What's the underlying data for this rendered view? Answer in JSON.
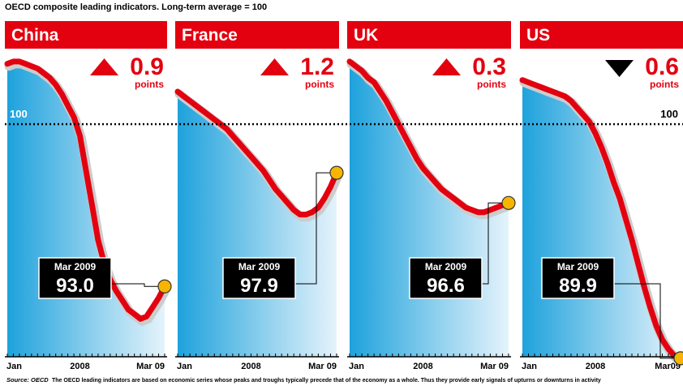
{
  "title": "OECD composite leading indicators. Long-term average = 100",
  "reference": 100,
  "source": "Source: OECD",
  "note": "The OECD leading indicators are based on economic series whose peaks and troughs typically precede that of the economy as a whole. Thus they provide early signals of upturns or downturns in activity",
  "chart_data": [
    {
      "type": "line",
      "title": "China",
      "color": "#e3000f",
      "ylim": [
        90,
        103.5
      ],
      "categories": [
        "Jan",
        null,
        null,
        null,
        null,
        null,
        null,
        null,
        null,
        null,
        null,
        null,
        "2008",
        null,
        null,
        null,
        null,
        null,
        null,
        null,
        null,
        null,
        null,
        null,
        null,
        null,
        "Mar 09"
      ],
      "values": [
        102.6,
        102.7,
        102.7,
        102.6,
        102.5,
        102.4,
        102.2,
        102.0,
        101.7,
        101.3,
        100.8,
        100.3,
        99.5,
        98.0,
        96.5,
        95.0,
        94.0,
        93.3,
        92.8,
        92.4,
        92.0,
        91.8,
        91.6,
        91.7,
        92.1,
        92.5,
        93.0
      ],
      "value_labels": [
        null,
        null,
        null,
        null,
        null,
        null,
        null,
        null,
        null,
        null,
        null,
        null,
        null,
        null,
        null,
        null,
        null,
        null,
        null,
        null,
        null,
        null,
        null,
        null,
        null,
        null,
        "93.0"
      ],
      "annotation": "Mar 2009",
      "change": 0.9,
      "change_unit": "points",
      "change_direction": "up"
    },
    {
      "type": "line",
      "title": "France",
      "color": "#e3000f",
      "ylim": [
        90,
        103.5
      ],
      "categories": [
        "Jan",
        null,
        null,
        null,
        null,
        null,
        null,
        null,
        null,
        null,
        null,
        null,
        "2008",
        null,
        null,
        null,
        null,
        null,
        null,
        null,
        null,
        null,
        null,
        null,
        null,
        null,
        "Mar 09"
      ],
      "values": [
        101.4,
        101.2,
        101.0,
        100.8,
        100.6,
        100.4,
        100.2,
        100.0,
        99.8,
        99.5,
        99.2,
        98.9,
        98.6,
        98.3,
        98.0,
        97.6,
        97.2,
        96.9,
        96.6,
        96.3,
        96.1,
        96.1,
        96.2,
        96.4,
        96.8,
        97.3,
        97.9
      ],
      "value_labels": [
        null,
        null,
        null,
        null,
        null,
        null,
        null,
        null,
        null,
        null,
        null,
        null,
        null,
        null,
        null,
        null,
        null,
        null,
        null,
        null,
        null,
        null,
        null,
        null,
        null,
        null,
        "97.9"
      ],
      "annotation": "Mar 2009",
      "change": 1.2,
      "change_unit": "points",
      "change_direction": "up"
    },
    {
      "type": "line",
      "title": "UK",
      "color": "#e3000f",
      "ylim": [
        90,
        103.5
      ],
      "categories": [
        "Jan",
        null,
        null,
        null,
        null,
        null,
        null,
        null,
        null,
        null,
        null,
        null,
        "2008",
        null,
        null,
        null,
        null,
        null,
        null,
        null,
        null,
        null,
        null,
        null,
        null,
        null,
        "Mar 09"
      ],
      "values": [
        102.7,
        102.5,
        102.3,
        102.0,
        101.8,
        101.4,
        101.0,
        100.5,
        100.0,
        99.5,
        99.0,
        98.5,
        98.1,
        97.8,
        97.5,
        97.2,
        97.0,
        96.8,
        96.6,
        96.4,
        96.3,
        96.2,
        96.2,
        96.3,
        96.4,
        96.5,
        96.6
      ],
      "value_labels": [
        null,
        null,
        null,
        null,
        null,
        null,
        null,
        null,
        null,
        null,
        null,
        null,
        null,
        null,
        null,
        null,
        null,
        null,
        null,
        null,
        null,
        null,
        null,
        null,
        null,
        null,
        "96.6"
      ],
      "annotation": "Mar 2009",
      "change": 0.3,
      "change_unit": "points",
      "change_direction": "up"
    },
    {
      "type": "line",
      "title": "US",
      "color": "#e3000f",
      "ylim": [
        90,
        103.5
      ],
      "categories": [
        "Jan",
        null,
        null,
        null,
        null,
        null,
        null,
        null,
        null,
        null,
        null,
        null,
        "2008",
        null,
        null,
        null,
        null,
        null,
        null,
        null,
        null,
        null,
        null,
        null,
        null,
        null,
        "Mar09"
      ],
      "values": [
        101.9,
        101.8,
        101.7,
        101.6,
        101.5,
        101.4,
        101.3,
        101.2,
        101.0,
        100.7,
        100.4,
        100.1,
        99.6,
        99.0,
        98.3,
        97.5,
        96.8,
        95.9,
        95.0,
        94.0,
        93.0,
        92.1,
        91.3,
        90.7,
        90.3,
        90.0,
        89.9
      ],
      "value_labels": [
        null,
        null,
        null,
        null,
        null,
        null,
        null,
        null,
        null,
        null,
        null,
        null,
        null,
        null,
        null,
        null,
        null,
        null,
        null,
        null,
        null,
        null,
        null,
        null,
        null,
        null,
        "89.9"
      ],
      "annotation": "Mar 2009",
      "change": 0.6,
      "change_unit": "points",
      "change_direction": "down"
    }
  ]
}
